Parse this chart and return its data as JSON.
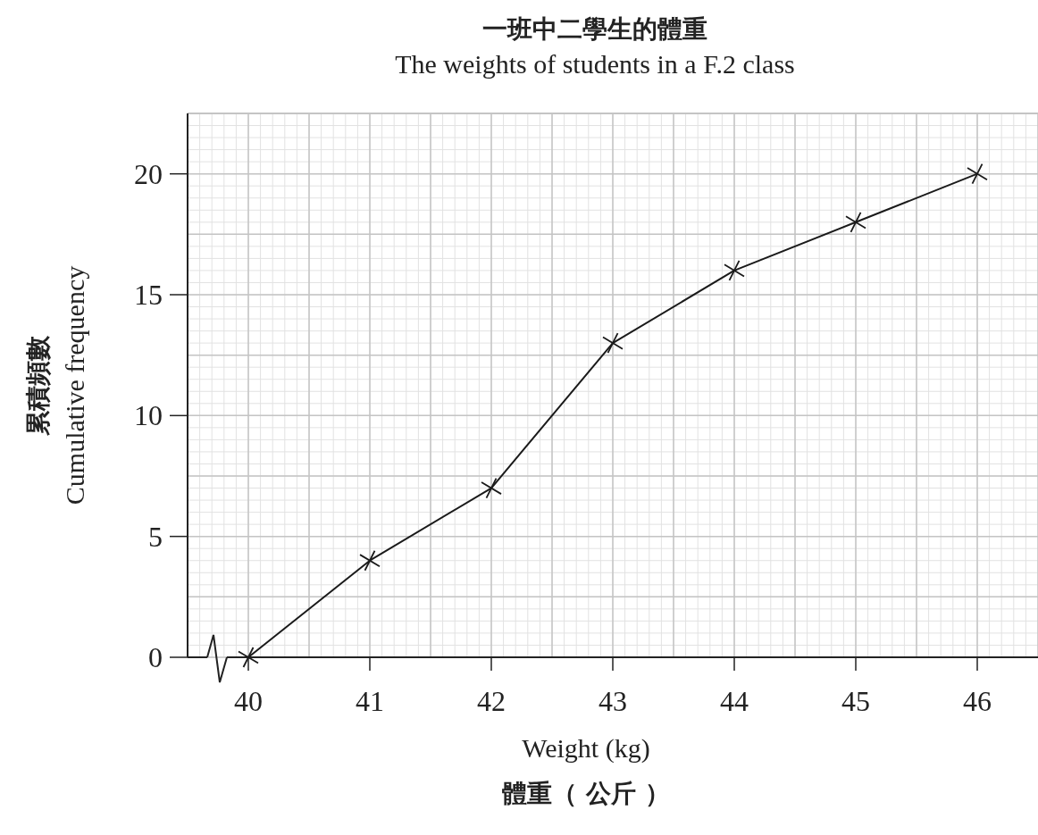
{
  "chart_data": {
    "type": "line",
    "title": "一班中二學生的體重",
    "subtitle": "The weights of students in a F.2 class",
    "xlabel": "Weight (kg)\n體重（ 公斤 ）",
    "ylabel": "累積頻數\nCumulative frequency",
    "x": [
      40,
      41,
      42,
      43,
      44,
      45,
      46
    ],
    "series": [
      {
        "color": "#1a1a1a",
        "values": [
          0,
          4,
          7,
          13,
          16,
          18,
          20
        ]
      }
    ],
    "xlim": [
      39.5,
      46.5
    ],
    "ylim": [
      0,
      22.5
    ],
    "xticks": [
      40,
      41,
      42,
      43,
      44,
      45,
      46
    ],
    "yticks": [
      0,
      5,
      10,
      15,
      20
    ],
    "grid": true,
    "marker": "cross",
    "line_style": "solid"
  }
}
